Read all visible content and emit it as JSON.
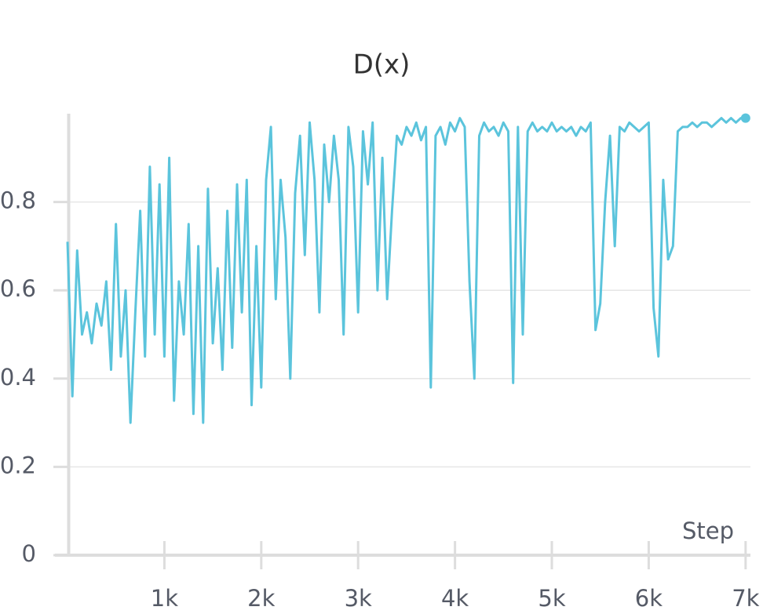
{
  "chart_data": {
    "type": "line",
    "title": "D(x)",
    "x_label": "Step",
    "x": [
      0,
      50,
      100,
      150,
      200,
      250,
      300,
      350,
      400,
      450,
      500,
      550,
      600,
      650,
      700,
      750,
      800,
      850,
      900,
      950,
      1000,
      1050,
      1100,
      1150,
      1200,
      1250,
      1300,
      1350,
      1400,
      1450,
      1500,
      1550,
      1600,
      1650,
      1700,
      1750,
      1800,
      1850,
      1900,
      1950,
      2000,
      2050,
      2100,
      2150,
      2200,
      2250,
      2300,
      2350,
      2400,
      2450,
      2500,
      2550,
      2600,
      2650,
      2700,
      2750,
      2800,
      2850,
      2900,
      2950,
      3000,
      3050,
      3100,
      3150,
      3200,
      3250,
      3300,
      3350,
      3400,
      3450,
      3500,
      3550,
      3600,
      3650,
      3700,
      3750,
      3800,
      3850,
      3900,
      3950,
      4000,
      4050,
      4100,
      4150,
      4200,
      4250,
      4300,
      4350,
      4400,
      4450,
      4500,
      4550,
      4600,
      4650,
      4700,
      4750,
      4800,
      4850,
      4900,
      4950,
      5000,
      5050,
      5100,
      5150,
      5200,
      5250,
      5300,
      5350,
      5400,
      5450,
      5500,
      5550,
      5600,
      5650,
      5700,
      5750,
      5800,
      5850,
      5900,
      5950,
      6000,
      6050,
      6100,
      6150,
      6200,
      6250,
      6300,
      6350,
      6400,
      6450,
      6500,
      6550,
      6600,
      6650,
      6700,
      6750,
      6800,
      6850,
      6900,
      6950,
      7000
    ],
    "series": [
      {
        "name": "D(x)",
        "color": "#5bc4dc",
        "values": [
          0.71,
          0.36,
          0.69,
          0.5,
          0.55,
          0.48,
          0.57,
          0.52,
          0.62,
          0.42,
          0.75,
          0.45,
          0.6,
          0.3,
          0.55,
          0.78,
          0.45,
          0.88,
          0.5,
          0.84,
          0.45,
          0.9,
          0.35,
          0.62,
          0.5,
          0.75,
          0.32,
          0.7,
          0.3,
          0.83,
          0.48,
          0.65,
          0.42,
          0.78,
          0.47,
          0.84,
          0.55,
          0.85,
          0.34,
          0.7,
          0.38,
          0.85,
          0.97,
          0.58,
          0.85,
          0.72,
          0.4,
          0.82,
          0.95,
          0.68,
          0.98,
          0.85,
          0.55,
          0.93,
          0.8,
          0.95,
          0.85,
          0.5,
          0.97,
          0.88,
          0.55,
          0.96,
          0.84,
          0.98,
          0.6,
          0.9,
          0.58,
          0.78,
          0.95,
          0.93,
          0.97,
          0.95,
          0.98,
          0.94,
          0.97,
          0.38,
          0.95,
          0.97,
          0.93,
          0.98,
          0.96,
          0.99,
          0.97,
          0.62,
          0.4,
          0.95,
          0.98,
          0.96,
          0.97,
          0.95,
          0.98,
          0.96,
          0.39,
          0.97,
          0.5,
          0.96,
          0.98,
          0.96,
          0.97,
          0.96,
          0.98,
          0.96,
          0.97,
          0.96,
          0.97,
          0.95,
          0.97,
          0.96,
          0.98,
          0.51,
          0.57,
          0.8,
          0.95,
          0.7,
          0.97,
          0.96,
          0.98,
          0.97,
          0.96,
          0.97,
          0.98,
          0.56,
          0.45,
          0.85,
          0.67,
          0.7,
          0.96,
          0.97,
          0.97,
          0.98,
          0.97,
          0.98,
          0.98,
          0.97,
          0.98,
          0.99,
          0.98,
          0.99,
          0.98,
          0.99,
          0.99
        ]
      }
    ],
    "xlim": [
      0,
      7050
    ],
    "ylim": [
      0,
      1
    ],
    "xticks": [
      {
        "value": 1000,
        "label": "1k"
      },
      {
        "value": 2000,
        "label": "2k"
      },
      {
        "value": 3000,
        "label": "3k"
      },
      {
        "value": 4000,
        "label": "4k"
      },
      {
        "value": 5000,
        "label": "5k"
      },
      {
        "value": 6000,
        "label": "6k"
      },
      {
        "value": 7000,
        "label": "7k"
      }
    ],
    "yticks": [
      0,
      0.2,
      0.4,
      0.6,
      0.8
    ],
    "grid": true
  }
}
